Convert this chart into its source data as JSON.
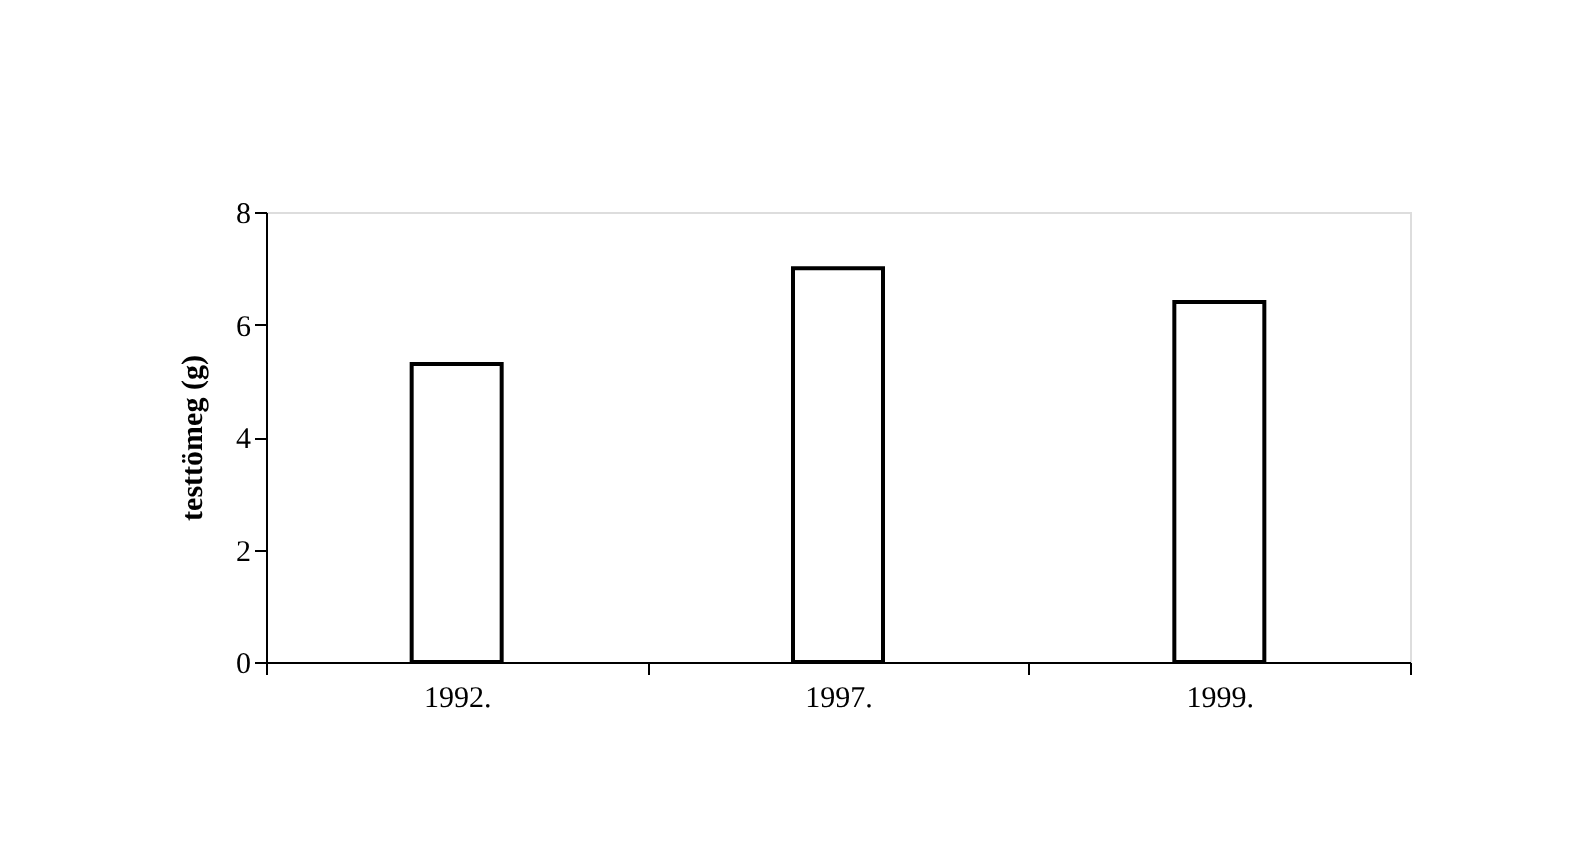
{
  "chart_data": {
    "type": "bar",
    "ylabel": "testtömeg (g)",
    "categories": [
      "1992.",
      "1997.",
      "1999."
    ],
    "values": [
      5.3,
      7.0,
      6.4
    ],
    "color": "#ffffff",
    "ylim": [
      0,
      8
    ],
    "yticks": [
      0,
      2,
      4,
      6,
      8
    ],
    "grid": false
  }
}
